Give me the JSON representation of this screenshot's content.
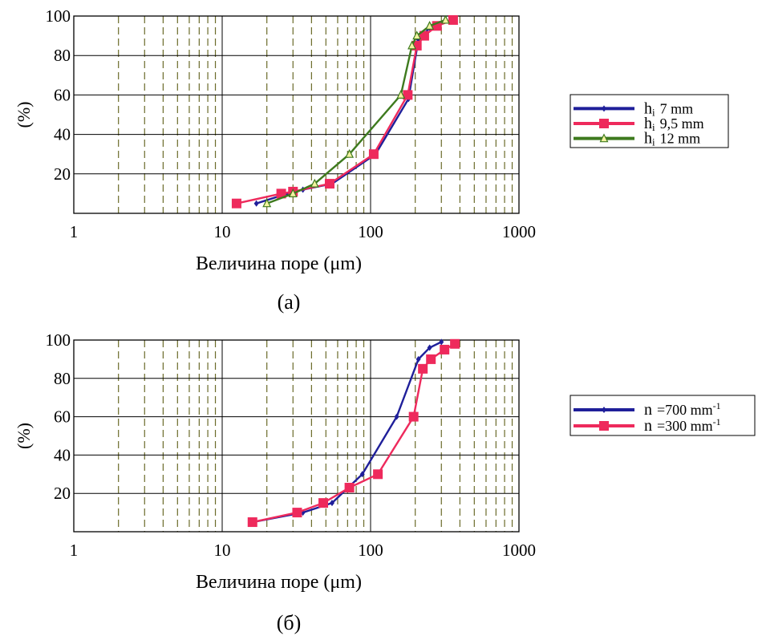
{
  "chart_data": [
    {
      "type": "line",
      "panel_label": "(a)",
      "xlabel": "Величина поре (μm)",
      "ylabel": "(%)",
      "xscale": "log",
      "xlim": [
        1,
        1000
      ],
      "ylim": [
        0,
        100
      ],
      "x_ticks": [
        "1",
        "10",
        "100",
        "1000"
      ],
      "y_ticks": [
        "20",
        "40",
        "60",
        "80",
        "100"
      ],
      "grid": true,
      "legend_position": "right",
      "series": [
        {
          "name_main": "h",
          "name_sub": "i",
          "name_rest": "7 mm",
          "color": "#1f1f9a",
          "marker": "diamond",
          "points": [
            [
              17,
              5
            ],
            [
              25,
              9
            ],
            [
              35,
              12
            ],
            [
              55,
              15
            ],
            [
              108,
              30
            ],
            [
              180,
              58
            ],
            [
              210,
              88
            ],
            [
              250,
              94
            ],
            [
              290,
              96
            ],
            [
              360,
              98
            ]
          ]
        },
        {
          "name_main": "h",
          "name_sub": "i",
          "name_rest": "9,5 mm",
          "color": "#ee2a5c",
          "marker": "square",
          "points": [
            [
              12.5,
              5
            ],
            [
              25,
              10
            ],
            [
              30,
              11
            ],
            [
              53,
              15
            ],
            [
              105,
              30
            ],
            [
              178,
              60
            ],
            [
              205,
              85
            ],
            [
              230,
              90
            ],
            [
              280,
              95
            ],
            [
              360,
              98
            ]
          ]
        },
        {
          "name_main": "h",
          "name_sub": "i",
          "name_rest": "12 mm",
          "color": "#3e7a1e",
          "marker": "triangle",
          "points": [
            [
              20,
              5
            ],
            [
              30,
              10
            ],
            [
              42,
              15
            ],
            [
              72,
              30
            ],
            [
              160,
              60
            ],
            [
              190,
              85
            ],
            [
              205,
              90
            ],
            [
              250,
              95
            ],
            [
              320,
              98
            ]
          ]
        }
      ]
    },
    {
      "type": "line",
      "panel_label": "(б)",
      "xlabel": "Величина поре (μm)",
      "ylabel": "(%)",
      "xscale": "log",
      "xlim": [
        1,
        1000
      ],
      "ylim": [
        0,
        100
      ],
      "x_ticks": [
        "1",
        "10",
        "100",
        "1000"
      ],
      "y_ticks": [
        "20",
        "40",
        "60",
        "80",
        "100"
      ],
      "grid": true,
      "legend_position": "right",
      "series": [
        {
          "name_main": "n",
          "name_sub": "",
          "name_rest": "=700 mm",
          "name_sup": "-1",
          "color": "#1f1f9a",
          "marker": "diamond",
          "points": [
            [
              16,
              5
            ],
            [
              35,
              10
            ],
            [
              55,
              15
            ],
            [
              88,
              30
            ],
            [
              150,
              60
            ],
            [
              210,
              90
            ],
            [
              250,
              96
            ],
            [
              300,
              99
            ]
          ]
        },
        {
          "name_main": "n",
          "name_sub": "",
          "name_rest": "=300 mm",
          "name_sup": "-1",
          "color": "#ee2a5c",
          "marker": "square",
          "points": [
            [
              16,
              5
            ],
            [
              32,
              10
            ],
            [
              48,
              15
            ],
            [
              72,
              23
            ],
            [
              112,
              30
            ],
            [
              195,
              60
            ],
            [
              225,
              85
            ],
            [
              255,
              90
            ],
            [
              315,
              95
            ],
            [
              370,
              98
            ]
          ]
        }
      ]
    }
  ]
}
